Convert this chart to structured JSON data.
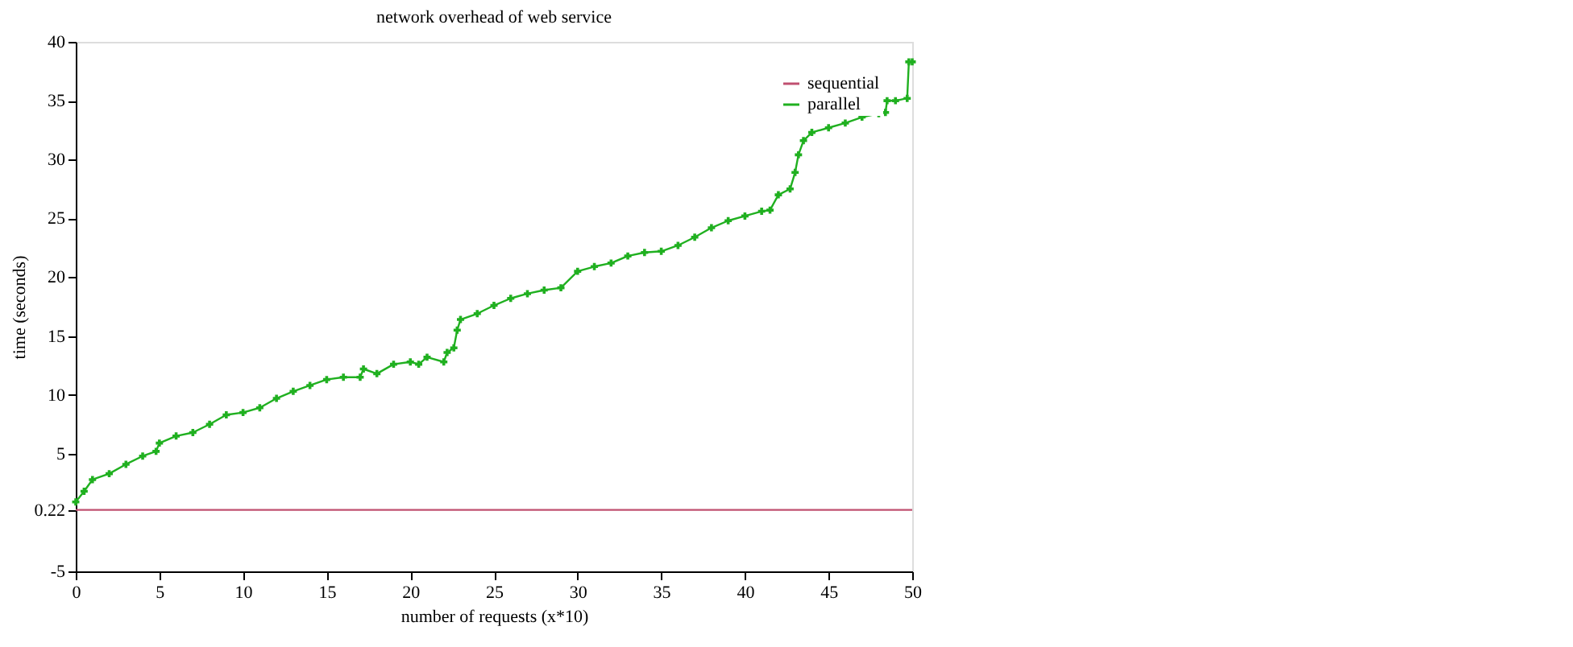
{
  "chart_data": {
    "type": "line",
    "title": "network overhead of web service",
    "xlabel": "number of requests (x*10)",
    "ylabel": "time (seconds)",
    "xlim": [
      0,
      50
    ],
    "xticks": [
      0,
      5,
      10,
      15,
      20,
      25,
      30,
      35,
      40,
      45,
      50
    ],
    "ylim": [
      -5,
      40
    ],
    "yticks": [
      -5,
      0.22,
      5,
      10,
      15,
      20,
      25,
      30,
      35,
      40
    ],
    "grid": false,
    "legend": "top right",
    "series": [
      {
        "name": "sequential",
        "color": "#c05070",
        "marker": "none",
        "x": [
          0,
          10,
          20,
          30,
          40,
          50
        ],
        "values": [
          0.22,
          0.22,
          0.22,
          0.22,
          0.22,
          0.22
        ]
      },
      {
        "name": "parallel",
        "color": "#20b020",
        "marker": "cross",
        "x": [
          0,
          0.5,
          1,
          2,
          3,
          4,
          4.8,
          5,
          6,
          7,
          8,
          9,
          10,
          11,
          12,
          13,
          14,
          15,
          16,
          17,
          17.2,
          18,
          19,
          20,
          20.5,
          21,
          22,
          22.2,
          22.6,
          22.8,
          23,
          24,
          25,
          26,
          27,
          28,
          29,
          30,
          31,
          32,
          33,
          34,
          35,
          36,
          37,
          38,
          39,
          40,
          41,
          41.5,
          42,
          42.7,
          43,
          43.2,
          43.5,
          44,
          45,
          46,
          47,
          48,
          48.4,
          48.5,
          49,
          49.7,
          49.8,
          50
        ],
        "values": [
          0.9,
          1.8,
          2.8,
          3.3,
          4.1,
          4.8,
          5.2,
          5.9,
          6.5,
          6.8,
          7.5,
          8.3,
          8.5,
          8.9,
          9.7,
          10.3,
          10.8,
          11.3,
          11.5,
          11.5,
          12.2,
          11.8,
          12.6,
          12.8,
          12.6,
          13.2,
          12.8,
          13.6,
          14.0,
          15.5,
          16.4,
          16.9,
          17.6,
          18.2,
          18.6,
          18.9,
          19.1,
          20.5,
          20.9,
          21.2,
          21.8,
          22.1,
          22.2,
          22.7,
          23.4,
          24.2,
          24.8,
          25.2,
          25.6,
          25.7,
          27.0,
          27.5,
          28.9,
          30.4,
          31.6,
          32.3,
          32.7,
          33.1,
          33.6,
          33.9,
          34.0,
          35.0,
          35.0,
          35.2,
          38.3,
          38.3
        ]
      }
    ]
  }
}
